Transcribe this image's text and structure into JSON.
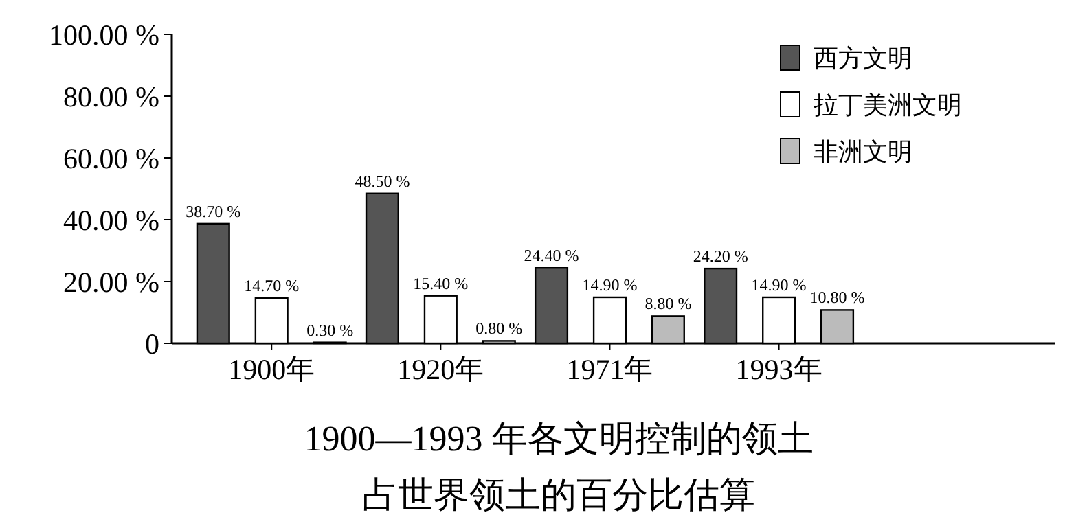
{
  "chart_data": {
    "type": "bar",
    "title": "1900—1993 年各文明控制的领土",
    "subtitle": "占世界领土的百分比估算",
    "categories": [
      "1900年",
      "1920年",
      "1971年",
      "1993年"
    ],
    "series": [
      {
        "name": "西方文明",
        "color": "#555555",
        "values": [
          38.7,
          48.5,
          24.4,
          24.2
        ],
        "value_labels": [
          "38.70 %",
          "48.50 %",
          "24.40 %",
          "24.20 %"
        ]
      },
      {
        "name": "拉丁美洲文明",
        "color": "#ffffff",
        "values": [
          14.7,
          15.4,
          14.9,
          14.9
        ],
        "value_labels": [
          "14.70 %",
          "15.40 %",
          "14.90 %",
          "14.90 %"
        ]
      },
      {
        "name": "非洲文明",
        "color": "#bbbbbb",
        "values": [
          0.3,
          0.8,
          8.8,
          10.8
        ],
        "value_labels": [
          "0.30 %",
          "0.80 %",
          "8.80 %",
          "10.80 %"
        ]
      }
    ],
    "ylim": [
      0,
      100
    ],
    "yticks": [
      {
        "value": 0,
        "label": "0"
      },
      {
        "value": 20,
        "label": "20.00 %"
      },
      {
        "value": 40,
        "label": "40.00 %"
      },
      {
        "value": 60,
        "label": "60.00 %"
      },
      {
        "value": 80,
        "label": "80.00 %"
      },
      {
        "value": 100,
        "label": "100.00 %"
      }
    ],
    "grid": false,
    "legend": "top right"
  }
}
